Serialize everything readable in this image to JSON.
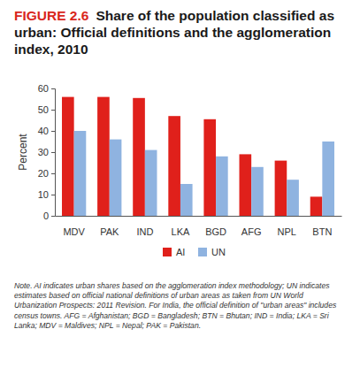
{
  "chart_data": {
    "type": "bar",
    "figure_label": "FIGURE 2.6",
    "title": "Share of the population classified as urban: Official definitions and the agglomeration index, 2010",
    "y_label": "Percent",
    "categories": [
      "MDV",
      "PAK",
      "IND",
      "LKA",
      "BGD",
      "AFG",
      "NPL",
      "BTN"
    ],
    "series": [
      {
        "name": "AI",
        "color": "#e0201b",
        "values": [
          56,
          56,
          55.5,
          47,
          45.5,
          29,
          26,
          9
        ]
      },
      {
        "name": "UN",
        "color": "#8fb3e0",
        "values": [
          40,
          36,
          31,
          15,
          28,
          23,
          17,
          35
        ]
      }
    ],
    "ylim": [
      0,
      60
    ],
    "yticks": [
      0,
      10,
      20,
      30,
      40,
      50,
      60
    ],
    "grid": false,
    "legend": "bottom",
    "note": "Note. AI indicates urban shares based on the agglomeration index methodology; UN indicates estimates based on official national definitions of urban areas as taken from UN World Urbanization Prospects: 2011 Revision. For India, the official definition of \"urban areas\" includes census towns. AFG = Afghanistan; BGD = Bangladesh; BTN = Bhutan; IND = India; LKA = Sri Lanka; MDV = Maldives; NPL = Nepal; PAK = Pakistan."
  }
}
